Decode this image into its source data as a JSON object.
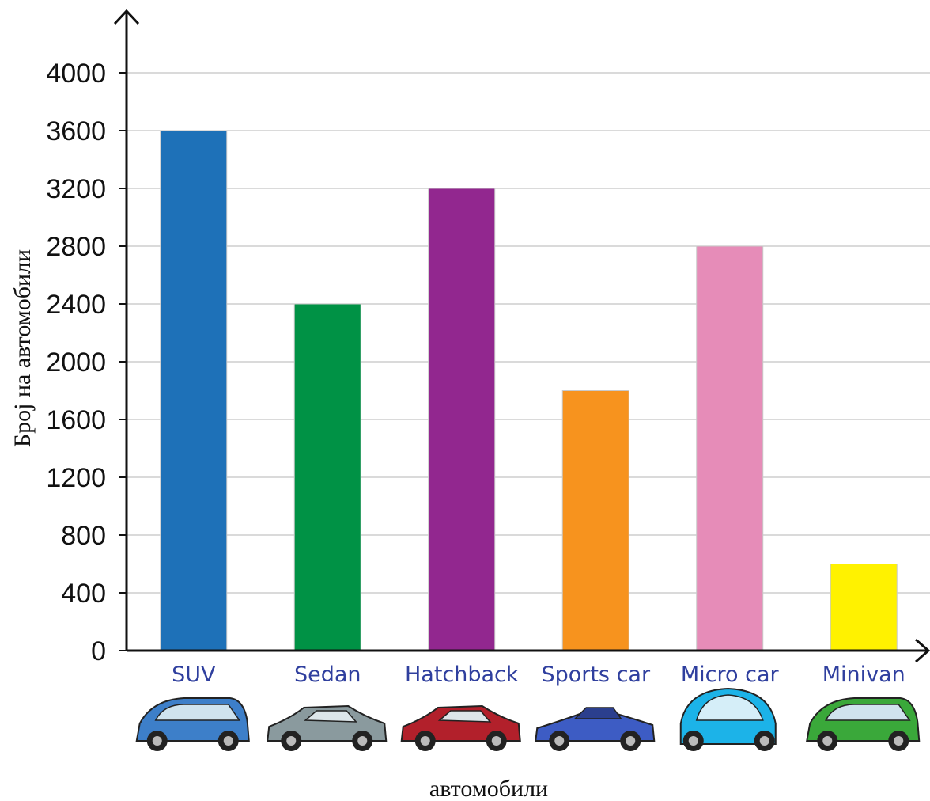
{
  "chart_data": {
    "type": "bar",
    "title": "",
    "xlabel": "автомобили",
    "ylabel": "Број на автомобили",
    "categories": [
      "SUV",
      "Sedan",
      "Hatchback",
      "Sports car",
      "Micro car",
      "Minivan"
    ],
    "values": [
      3600,
      2400,
      3200,
      1800,
      2800,
      600
    ],
    "colors": [
      "#1e71b8",
      "#009245",
      "#92278f",
      "#f7931e",
      "#e68cb8",
      "#fff200"
    ],
    "category_icons": [
      "minivan-blue-icon",
      "sedan-gray-icon",
      "hatchback-red-icon",
      "sports-car-blue-icon",
      "micro-car-cyan-icon",
      "minivan-green-icon"
    ],
    "ylim": [
      0,
      4000
    ],
    "yticks": [
      0,
      400,
      800,
      1200,
      1600,
      2000,
      2400,
      2800,
      3200,
      3600,
      4000
    ],
    "grid": true,
    "legend": "none"
  }
}
